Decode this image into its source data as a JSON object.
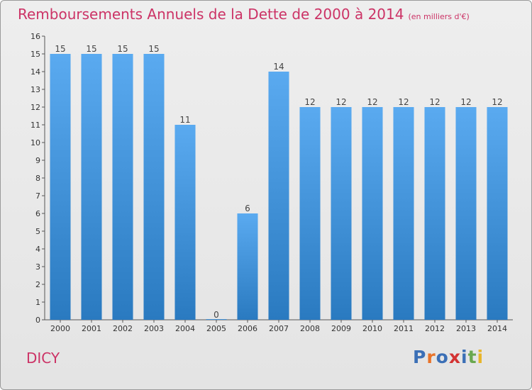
{
  "header": {
    "title": "Remboursements Annuels de la Dette de 2000 à 2014",
    "unit": "(en milliers d'€)"
  },
  "footer": {
    "city": "DICY",
    "logo_text": "Proxiti",
    "logo_colors": [
      "#3b6fb6",
      "#e8732a",
      "#3b6fb6",
      "#d33333",
      "#3b6fb6",
      "#6aa84f",
      "#e8b52a"
    ]
  },
  "chart_data": {
    "type": "bar",
    "categories": [
      "2000",
      "2001",
      "2002",
      "2003",
      "2004",
      "2005",
      "2006",
      "2007",
      "2008",
      "2009",
      "2010",
      "2011",
      "2012",
      "2013",
      "2014"
    ],
    "values": [
      15,
      15,
      15,
      15,
      11,
      0,
      6,
      14,
      12,
      12,
      12,
      12,
      12,
      12,
      12
    ],
    "data_labels": [
      "15",
      "15",
      "15",
      "15",
      "11",
      "0",
      "6",
      "14",
      "12",
      "12",
      "12",
      "12",
      "12",
      "12",
      "12"
    ],
    "title": "Remboursements Annuels de la Dette de 2000 à 2014",
    "xlabel": "",
    "ylabel": "",
    "ylim": [
      0,
      16
    ],
    "yticks": [
      0,
      1,
      2,
      3,
      4,
      5,
      6,
      7,
      8,
      9,
      10,
      11,
      12,
      13,
      14,
      15,
      16
    ],
    "grid": false,
    "bar_color_top": "#5aaaf0",
    "bar_color_bottom": "#2a7ac0"
  }
}
